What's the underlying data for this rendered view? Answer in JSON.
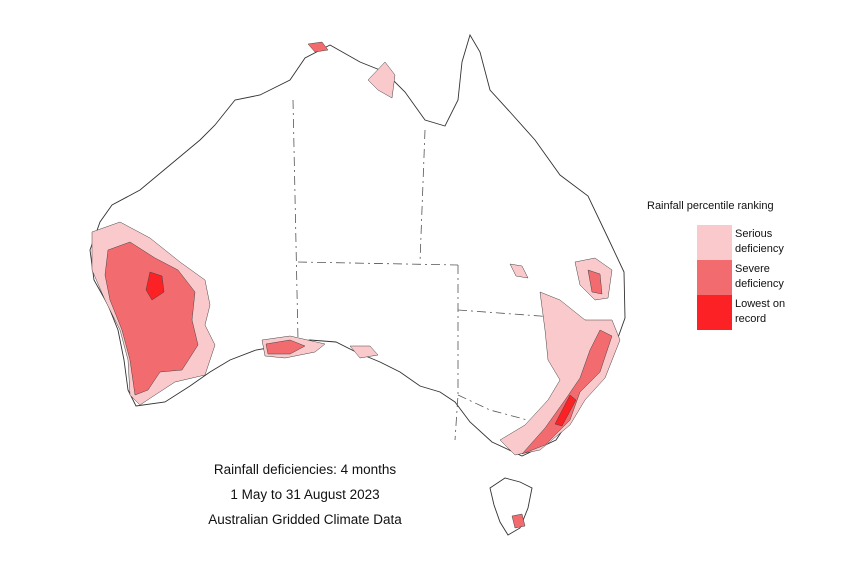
{
  "legend": {
    "title": "Rainfall percentile ranking",
    "items": [
      {
        "label": "Serious deficiency",
        "color": "#f9c9cc"
      },
      {
        "label": "Severe deficiency",
        "color": "#f26b6f"
      },
      {
        "label": "Lowest on record",
        "color": "#fb2125"
      }
    ]
  },
  "caption": {
    "lines": [
      "Rainfall deficiencies: 4 months",
      "1 May to 31 August 2023",
      "Australian Gridded Climate Data"
    ]
  }
}
